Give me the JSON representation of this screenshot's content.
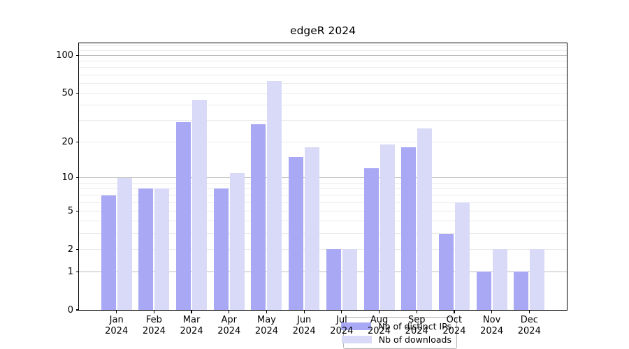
{
  "chart_data": {
    "type": "bar",
    "title": "edgeR 2024",
    "categories": [
      "Jan",
      "Feb",
      "Mar",
      "Apr",
      "May",
      "Jun",
      "Jul",
      "Aug",
      "Sep",
      "Oct",
      "Nov",
      "Dec"
    ],
    "x_tick_year": "2024",
    "series": [
      {
        "name": "Nb of distinct IPs",
        "color": "#a8a8f5",
        "values": [
          7,
          8,
          29,
          8,
          28,
          15,
          2,
          12,
          18,
          3,
          1,
          1
        ]
      },
      {
        "name": "Nb of downloads",
        "color": "#d9d9f8",
        "values": [
          10,
          8,
          44,
          11,
          63,
          18,
          2,
          19,
          26,
          6,
          2,
          2
        ]
      }
    ],
    "xlabel": "",
    "ylabel": "",
    "yscale": "log1p",
    "ylim": [
      0,
      125
    ],
    "y_ticks": [
      0,
      1,
      2,
      5,
      10,
      20,
      50,
      100
    ],
    "grid_on": true,
    "grid_major_values": [
      1,
      10,
      100
    ],
    "grid_minor_values": [
      2,
      3,
      4,
      5,
      6,
      7,
      8,
      9,
      20,
      30,
      40,
      50,
      60,
      70,
      80,
      90,
      110,
      120
    ],
    "legend_position": "lower center",
    "colors": {
      "major_grid": "#bdbdbd",
      "minor_grid": "#ebebeb",
      "axis": "#000000",
      "legend_border": "#b3b3b3",
      "background": "#ffffff"
    }
  }
}
